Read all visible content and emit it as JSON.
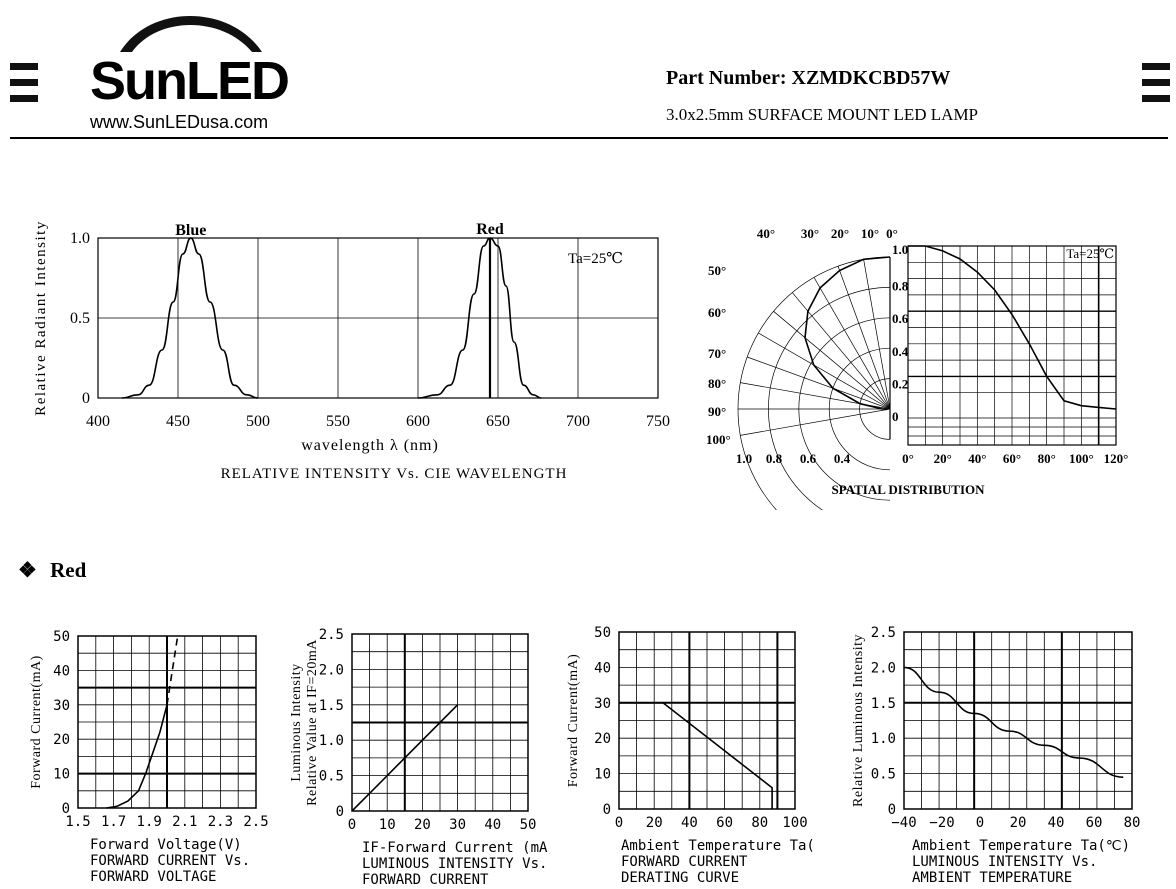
{
  "header": {
    "brand": "SunLED",
    "url": "www.SunLEDusa.com",
    "part_number": "Part Number: XZMDKCBD57W",
    "description": "3.0x2.5mm SURFACE MOUNT LED LAMP"
  },
  "section": {
    "title": "Red",
    "bullet": "❖"
  },
  "chart_data": [
    {
      "type": "line",
      "title": "RELATIVE INTENSITY Vs. CIE WAVELENGTH",
      "xlabel": "wavelength λ (nm)",
      "ylabel": "Relative Radiant Intensity",
      "annotation": "Ta=25℃",
      "xlim": [
        400,
        750
      ],
      "ylim": [
        0,
        1.0
      ],
      "x_ticks": [
        "400",
        "450",
        "500",
        "550",
        "600",
        "650",
        "700",
        "750"
      ],
      "y_ticks": [
        "0",
        "0.5",
        "1.0"
      ],
      "series": [
        {
          "name": "Blue",
          "x": [
            415,
            425,
            432,
            440,
            447,
            453,
            458,
            463,
            470,
            478,
            485,
            493,
            500
          ],
          "y": [
            0,
            0.02,
            0.08,
            0.3,
            0.6,
            0.9,
            1.0,
            0.9,
            0.6,
            0.3,
            0.08,
            0.02,
            0
          ]
        },
        {
          "name": "Red",
          "x": [
            600,
            612,
            620,
            628,
            635,
            641,
            645,
            650,
            655,
            660,
            666,
            672,
            677
          ],
          "y": [
            0,
            0.02,
            0.08,
            0.3,
            0.65,
            0.95,
            1.0,
            0.95,
            0.7,
            0.35,
            0.08,
            0.02,
            0
          ]
        }
      ]
    },
    {
      "type": "line",
      "title": "SPATIAL DISTRIBUTION",
      "annotation": "Ta=25℃",
      "angle_labels": [
        "40°",
        "30°",
        "20°",
        "10°",
        "0°",
        "50°",
        "60°",
        "70°",
        "80°",
        "90°",
        "100°"
      ],
      "radial_ticks": [
        "1.0",
        "0.8",
        "0.6",
        "0.4",
        "0.2",
        "0"
      ],
      "bottom_left_ticks": [
        "1.0",
        "0.8",
        "0.6",
        "0.4"
      ],
      "bottom_right_ticks": [
        "0°",
        "20°",
        "40°",
        "60°",
        "80°",
        "100°",
        "120°"
      ],
      "series": [
        {
          "x": [
            0,
            10,
            20,
            30,
            40,
            50,
            60,
            70,
            80,
            90,
            100,
            110,
            120
          ],
          "y": [
            1.0,
            1.0,
            0.97,
            0.92,
            0.84,
            0.73,
            0.58,
            0.4,
            0.2,
            0.05,
            0.02,
            0.01,
            0.0
          ]
        }
      ]
    },
    {
      "type": "line",
      "title": "FORWARD CURRENT Vs.\nFORWARD VOLTAGE",
      "xlabel": "Forward Voltage(V)",
      "ylabel": "Forward Current(mA)",
      "xlim": [
        1.5,
        2.5
      ],
      "ylim": [
        0,
        50
      ],
      "x_ticks": [
        "1.5",
        "1.7",
        "1.9",
        "2.1",
        "2.3",
        "2.5"
      ],
      "y_ticks": [
        "0",
        "10",
        "20",
        "30",
        "40",
        "50"
      ],
      "series": [
        {
          "x": [
            1.66,
            1.72,
            1.78,
            1.84,
            1.88,
            1.92,
            1.96,
            2.0
          ],
          "y": [
            0,
            0.5,
            2,
            5,
            10,
            16,
            22,
            30
          ]
        },
        {
          "x": [
            2.0,
            2.03,
            2.06
          ],
          "y": [
            30,
            40,
            50
          ],
          "style": "dashed"
        }
      ]
    },
    {
      "type": "line",
      "title": "LUMINOUS INTENSITY Vs.\nFORWARD CURRENT",
      "xlabel": "IF-Forward Current (mA)",
      "ylabel": "Luminous Intensity\nRelative Value at IF=20mA",
      "xlim": [
        0,
        50
      ],
      "ylim": [
        0,
        2.5
      ],
      "x_ticks": [
        "0",
        "10",
        "20",
        "30",
        "40",
        "50"
      ],
      "y_ticks": [
        "0",
        "0.5",
        "1.0",
        "1.5",
        "2.0",
        "2.5"
      ],
      "series": [
        {
          "x": [
            0,
            30
          ],
          "y": [
            0,
            1.5
          ]
        }
      ]
    },
    {
      "type": "line",
      "title": "FORWARD CURRENT\nDERATING CURVE",
      "xlabel": "Ambient Temperature Ta(℃)",
      "ylabel": "Forward Current(mA)",
      "xlim": [
        0,
        100
      ],
      "ylim": [
        0,
        50
      ],
      "x_ticks": [
        "0",
        "20",
        "40",
        "60",
        "80",
        "100"
      ],
      "y_ticks": [
        "0",
        "10",
        "20",
        "30",
        "40",
        "50"
      ],
      "series": [
        {
          "x": [
            0,
            25,
            87,
            87
          ],
          "y": [
            30,
            30,
            6,
            0
          ]
        }
      ]
    },
    {
      "type": "line",
      "title": "LUMINOUS INTENSITY Vs.\nAMBIENT TEMPERATURE",
      "xlabel": "Ambient Temperature Ta(℃)",
      "ylabel": "Relative Luminous Intensity",
      "xlim": [
        -40,
        90
      ],
      "ylim": [
        0,
        2.5
      ],
      "x_ticks": [
        "−40",
        "−20",
        "0",
        "20",
        "40",
        "60",
        "80"
      ],
      "y_ticks": [
        "0",
        "0.5",
        "1.0",
        "1.5",
        "2.0",
        "2.5"
      ],
      "series": [
        {
          "x": [
            -40,
            -20,
            0,
            20,
            40,
            60,
            85
          ],
          "y": [
            2.0,
            1.65,
            1.35,
            1.1,
            0.9,
            0.72,
            0.45
          ]
        }
      ]
    }
  ]
}
